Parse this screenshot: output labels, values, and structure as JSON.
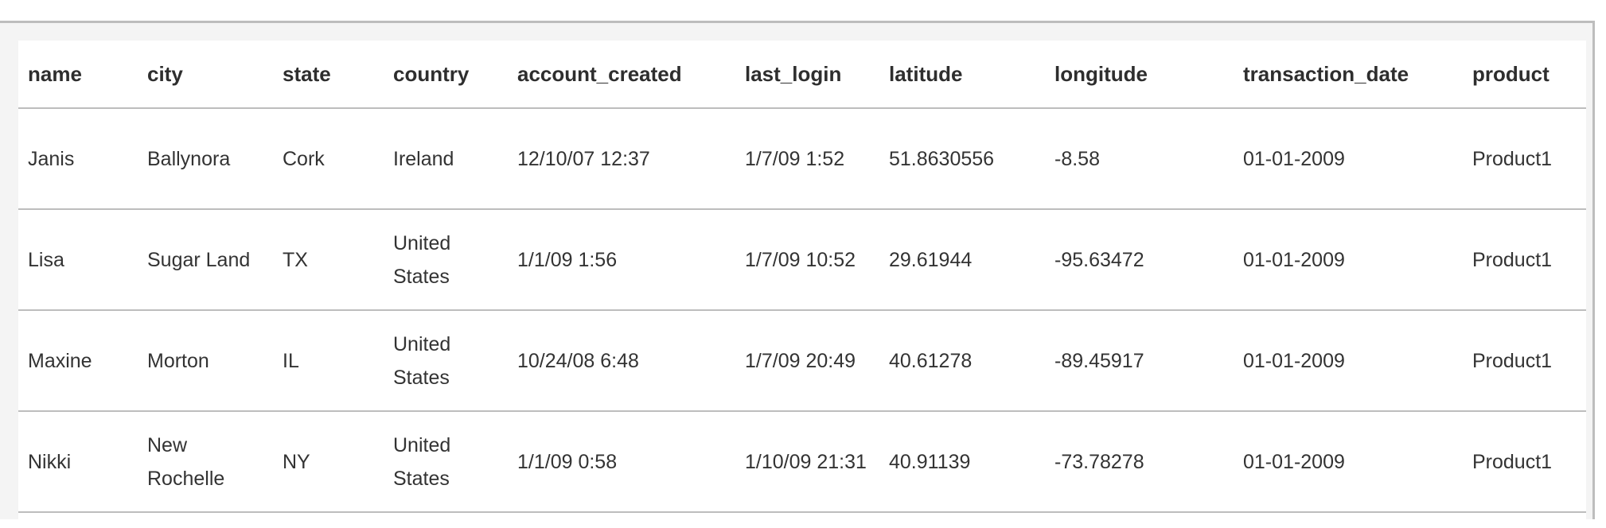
{
  "table": {
    "columns": [
      "name",
      "city",
      "state",
      "country",
      "account_created",
      "last_login",
      "latitude",
      "longitude",
      "transaction_date",
      "product"
    ],
    "rows": [
      [
        "Janis",
        "Ballynora",
        "Cork",
        "Ireland",
        "12/10/07 12:37",
        "1/7/09 1:52",
        "51.8630556",
        "-8.58",
        "01-01-2009",
        "Product1"
      ],
      [
        "Lisa",
        "Sugar Land",
        "TX",
        "United States",
        "1/1/09 1:56",
        "1/7/09 10:52",
        "29.61944",
        "-95.63472",
        "01-01-2009",
        "Product1"
      ],
      [
        "Maxine",
        "Morton",
        "IL",
        "United States",
        "10/24/08 6:48",
        "1/7/09 20:49",
        "40.61278",
        "-89.45917",
        "01-01-2009",
        "Product1"
      ],
      [
        "Nikki",
        "New Rochelle",
        "NY",
        "United States",
        "1/1/09 0:58",
        "1/10/09 21:31",
        "40.91139",
        "-73.78278",
        "01-01-2009",
        "Product1"
      ]
    ]
  }
}
